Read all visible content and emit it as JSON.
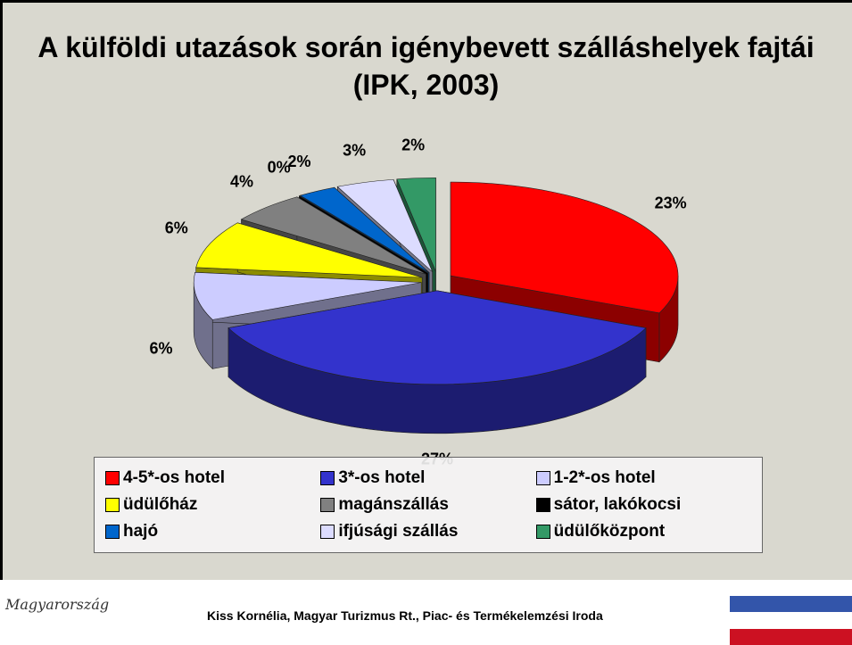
{
  "chart_data": {
    "type": "pie",
    "title": "A külföldi utazások során igénybevett szálláshelyek fajtái (IPK, 2003)",
    "categories": [
      "4-5*-os hotel",
      "3*-os hotel",
      "1-2*-os hotel",
      "üdülőház",
      "magánszállás",
      "sátor, lakókocsi",
      "hajó",
      "ifjúsági szállás",
      "üdülőközpont"
    ],
    "values": [
      23,
      27,
      6,
      6,
      4,
      0,
      2,
      3,
      2
    ],
    "value_labels": [
      "23%",
      "27%",
      "6%",
      "6%",
      "4%",
      "0%",
      "2%",
      "3%",
      "2%"
    ],
    "colors": [
      "#ff0000",
      "#3333cc",
      "#ccccff",
      "#ffff00",
      "#808080",
      "#000000",
      "#0066cc",
      "#dcdcff",
      "#339966"
    ],
    "legend": "bottom"
  },
  "footer": {
    "logo": "Magyarország",
    "text": "Kiss Kornélia, Magyar Turizmus Rt., Piac- és Termékelemzési Iroda"
  }
}
